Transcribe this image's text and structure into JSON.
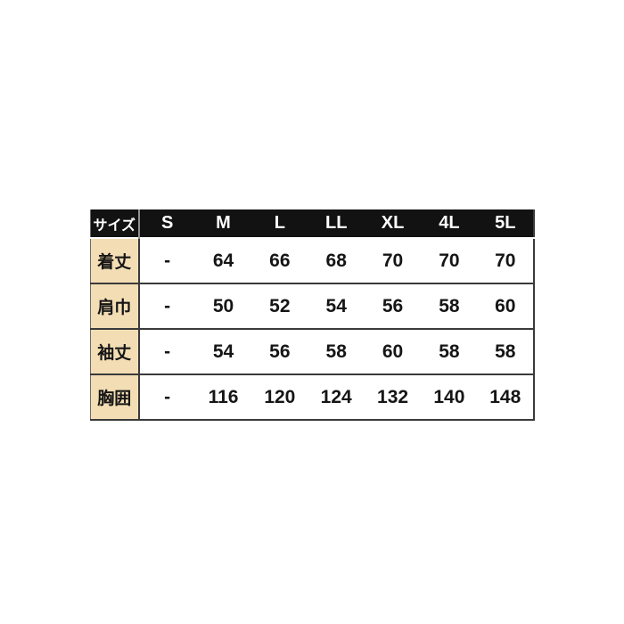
{
  "chart_data": {
    "type": "table",
    "columns": [
      "サイズ",
      "S",
      "M",
      "L",
      "LL",
      "XL",
      "4L",
      "5L"
    ],
    "rows": [
      [
        "着丈",
        "-",
        "64",
        "66",
        "68",
        "70",
        "70",
        "70"
      ],
      [
        "肩巾",
        "-",
        "50",
        "52",
        "54",
        "56",
        "58",
        "60"
      ],
      [
        "袖丈",
        "-",
        "54",
        "56",
        "58",
        "60",
        "58",
        "58"
      ],
      [
        "胸囲",
        "-",
        "116",
        "120",
        "124",
        "132",
        "140",
        "148"
      ]
    ]
  },
  "colors": {
    "page_background": "#ffffff",
    "header_background": "#121212",
    "header_text": "#ffffff",
    "header_divider": "#909090",
    "label_column_background": "#f3ddb4",
    "grid_line": "#3a3a3a",
    "value_text": "#151515"
  }
}
